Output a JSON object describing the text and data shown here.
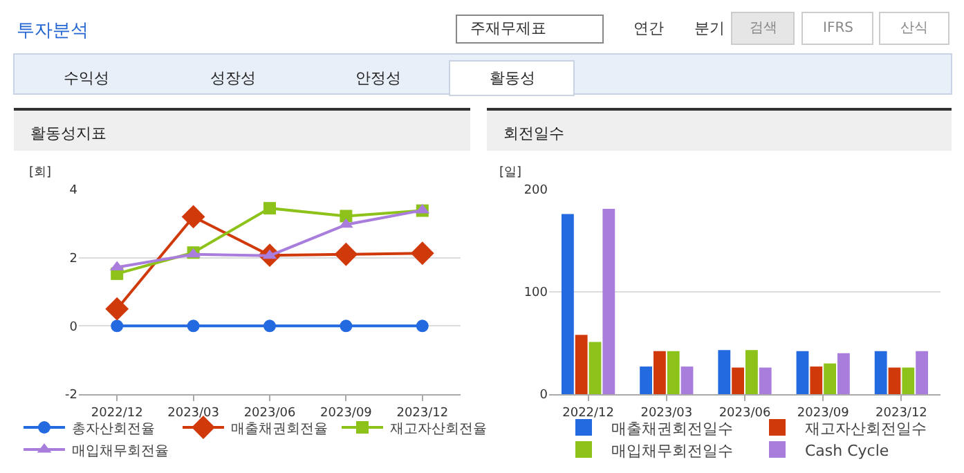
{
  "chart_data": [
    {
      "type": "other",
      "title": "투자분석",
      "annotations": [
        "주재무제표",
        "연간",
        "분기",
        "검색",
        "IFRS",
        "산식",
        "수익성",
        "성장성",
        "안정성",
        "활동성"
      ]
    },
    {
      "type": "line",
      "title": "활동성지표",
      "ylabel": "[회]",
      "categories": [
        "2022/12",
        "2023/03",
        "2023/06",
        "2023/09",
        "2023/12"
      ],
      "ylim": [
        -2,
        4
      ],
      "yticks": [
        -2,
        0,
        2,
        4
      ],
      "grid": "y",
      "legend": "bottom",
      "line_style": "solid",
      "series": [
        {
          "name": "총자산회전율",
          "color": "#2369e0",
          "marker": "circle",
          "values": [
            0,
            0,
            0,
            0,
            0
          ]
        },
        {
          "name": "매출채권회전율",
          "color": "#d03a0a",
          "marker": "diamond",
          "values": [
            0.5,
            3.2,
            2.07,
            2.1,
            2.13
          ]
        },
        {
          "name": "재고자산회전율",
          "color": "#8cc21a",
          "marker": "square",
          "values": [
            1.53,
            2.15,
            3.45,
            3.22,
            3.38
          ]
        },
        {
          "name": "매입채무회전율",
          "color": "#a87ddc",
          "marker": "triangle",
          "values": [
            1.72,
            2.1,
            2.06,
            2.97,
            3.39
          ]
        }
      ]
    },
    {
      "type": "bar",
      "title": "회전일수",
      "ylabel": "[일]",
      "categories": [
        "2022/12",
        "2023/03",
        "2023/06",
        "2023/09",
        "2023/12"
      ],
      "ylim": [
        0,
        200
      ],
      "yticks": [
        0,
        100,
        200
      ],
      "grid": "y",
      "legend": "bottom",
      "series": [
        {
          "name": "매출채권회전일수",
          "color": "#2369e0",
          "values": [
            176,
            27,
            43,
            42,
            42
          ]
        },
        {
          "name": "재고자산회전일수",
          "color": "#d03a0a",
          "values": [
            58,
            42,
            26,
            27,
            26
          ]
        },
        {
          "name": "매입채무회전일수",
          "color": "#8cc21a",
          "values": [
            51,
            42,
            43,
            30,
            26
          ]
        },
        {
          "name": "Cash Cycle",
          "color": "#a87ddc",
          "values": [
            181,
            27,
            26,
            40,
            42
          ]
        }
      ]
    }
  ]
}
